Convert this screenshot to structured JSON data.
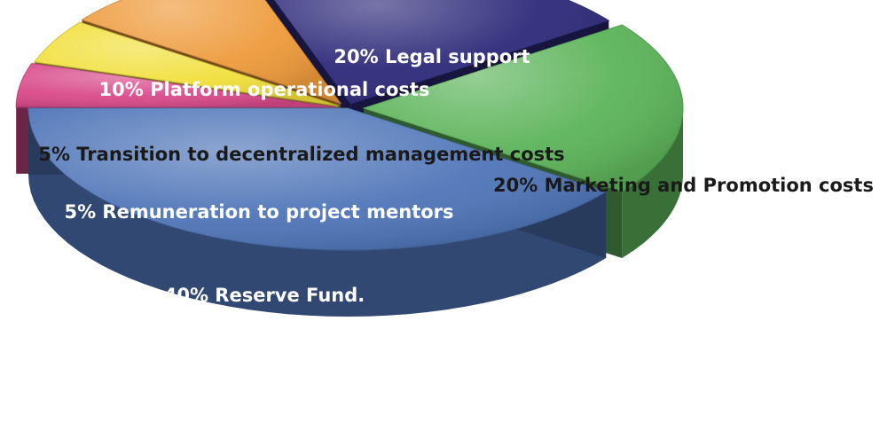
{
  "chart_data": {
    "type": "pie",
    "style": "3d-exploded",
    "slices": [
      {
        "label": "20% Legal support",
        "value": 20,
        "color": "#2e2a7a",
        "label_color": "#ffffff"
      },
      {
        "label": "20% Marketing and Promotion costs",
        "value": 20,
        "color": "#5cb45a",
        "label_color": "#1a1a1a"
      },
      {
        "label": "40% Reserve Fund.",
        "value": 40,
        "color": "#4f75b8",
        "label_color": "#ffffff"
      },
      {
        "label": "5% Remuneration to project mentors",
        "value": 5,
        "color": "#d94a8a",
        "label_color": "#ffffff"
      },
      {
        "label": "5% Transition to decentralized management costs",
        "value": 5,
        "color": "#f1df3a",
        "label_color": "#1a1a1a"
      },
      {
        "label": "10% Platform operational costs",
        "value": 10,
        "color": "#ee9a3a",
        "label_color": "#ffffff"
      }
    ]
  }
}
